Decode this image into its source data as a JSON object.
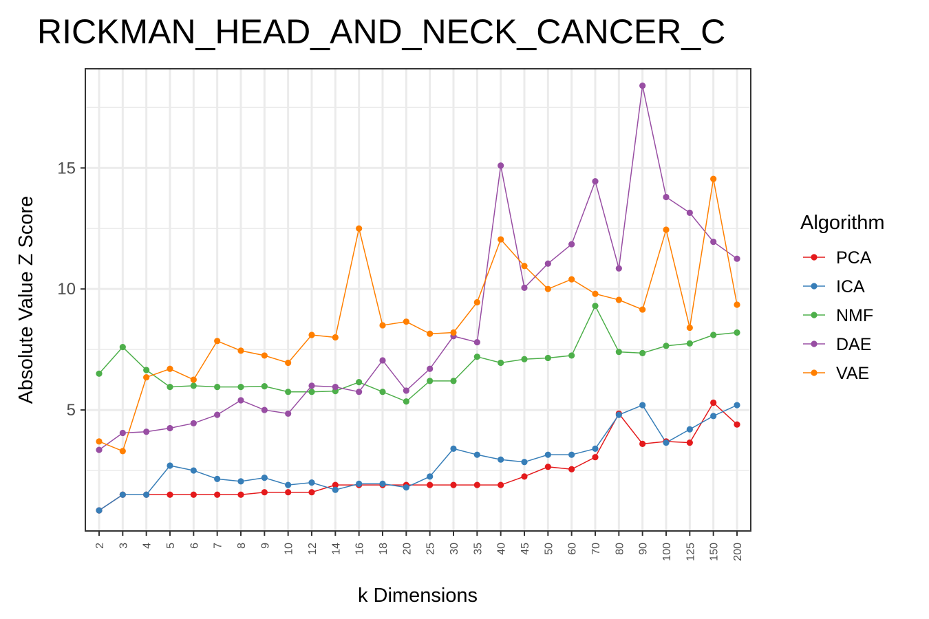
{
  "chart_data": {
    "type": "line",
    "title": "RICKMAN_HEAD_AND_NECK_CANCER_C",
    "xlabel": "k Dimensions",
    "ylabel": "Absolute Value Z Score",
    "categories": [
      "2",
      "3",
      "4",
      "5",
      "6",
      "7",
      "8",
      "9",
      "10",
      "12",
      "14",
      "16",
      "18",
      "20",
      "25",
      "30",
      "35",
      "40",
      "45",
      "50",
      "60",
      "70",
      "80",
      "90",
      "100",
      "125",
      "150",
      "200"
    ],
    "ylim": [
      0,
      19.1
    ],
    "yticks": [
      5,
      10,
      15
    ],
    "grid": true,
    "legend_title": "Algorithm",
    "legend_position": "right",
    "series": [
      {
        "name": "PCA",
        "color": "#e41a1c",
        "values": [
          0.85,
          1.5,
          1.5,
          1.5,
          1.5,
          1.5,
          1.5,
          1.6,
          1.6,
          1.6,
          1.9,
          1.9,
          1.9,
          1.9,
          1.9,
          1.9,
          1.9,
          1.9,
          2.25,
          2.65,
          2.55,
          3.05,
          4.85,
          3.6,
          3.7,
          3.65,
          5.3,
          4.4
        ]
      },
      {
        "name": "ICA",
        "color": "#377eb8",
        "values": [
          0.85,
          1.5,
          1.5,
          2.7,
          2.5,
          2.15,
          2.05,
          2.2,
          1.9,
          2.0,
          1.7,
          1.95,
          1.95,
          1.8,
          2.25,
          3.4,
          3.15,
          2.95,
          2.85,
          3.15,
          3.15,
          3.4,
          4.8,
          5.2,
          3.65,
          4.2,
          4.75,
          5.2
        ]
      },
      {
        "name": "NMF",
        "color": "#4daf4a",
        "values": [
          6.5,
          7.6,
          6.65,
          5.95,
          6.0,
          5.95,
          5.95,
          5.98,
          5.75,
          5.75,
          5.78,
          6.15,
          5.75,
          5.35,
          6.2,
          6.2,
          7.2,
          6.95,
          7.1,
          7.15,
          7.25,
          9.3,
          7.4,
          7.35,
          7.65,
          7.75,
          8.1,
          8.2
        ]
      },
      {
        "name": "DAE",
        "color": "#984ea3",
        "values": [
          3.35,
          4.05,
          4.1,
          4.25,
          4.45,
          4.8,
          5.4,
          5.0,
          4.85,
          6.0,
          5.95,
          5.75,
          7.05,
          5.8,
          6.7,
          8.05,
          7.8,
          15.1,
          10.05,
          11.05,
          11.85,
          14.45,
          10.85,
          18.4,
          13.8,
          13.15,
          11.95,
          11.25
        ]
      },
      {
        "name": "VAE",
        "color": "#ff7f00",
        "values": [
          3.7,
          3.3,
          6.35,
          6.7,
          6.25,
          7.85,
          7.45,
          7.25,
          6.95,
          8.1,
          8.0,
          12.5,
          8.5,
          8.65,
          8.15,
          8.2,
          9.45,
          12.05,
          10.95,
          10.0,
          10.4,
          9.8,
          9.55,
          9.15,
          12.45,
          8.4,
          14.55,
          9.35
        ]
      }
    ]
  }
}
